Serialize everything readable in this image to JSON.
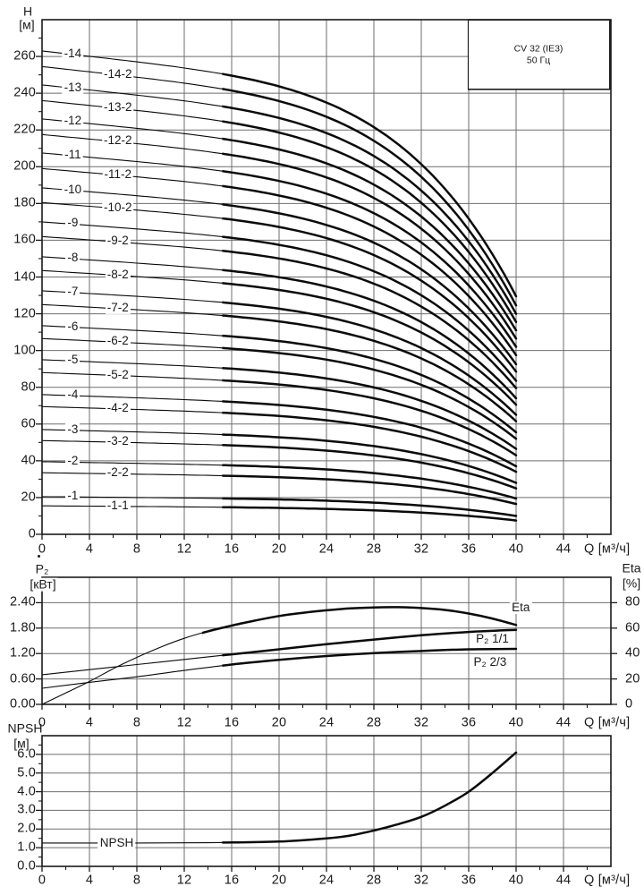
{
  "style": {
    "background": "#ffffff",
    "ink": "#1a1a1a",
    "grid_color": "#6e6e6e",
    "curve_color": "#0a0a0a"
  },
  "chart_data": [
    {
      "type": "line",
      "id": "head-curves",
      "title": "CV 32 (IE3)",
      "subtitle": "50 Гц",
      "xlabel": "Q [м³/ч]",
      "ylabel": "H [м]",
      "ylabel_title": "H",
      "ylabel_unit": "[м]",
      "xlim": [
        0,
        48
      ],
      "ylim": [
        0,
        280
      ],
      "x_ticks": [
        0,
        4,
        8,
        12,
        16,
        20,
        24,
        28,
        32,
        36,
        40,
        44
      ],
      "x_minor": [
        2,
        6,
        10,
        14,
        18,
        22,
        26,
        30,
        34,
        38,
        42,
        46
      ],
      "y_ticks": [
        0,
        20,
        40,
        60,
        80,
        100,
        120,
        140,
        160,
        180,
        200,
        220,
        240,
        260
      ],
      "y_minor": [
        10,
        30,
        50,
        70,
        90,
        110,
        130,
        150,
        170,
        190,
        210,
        230,
        250,
        270
      ],
      "grid": "on",
      "q_end": 40,
      "duty_from": 15.2,
      "curve_model": "H(q) = H0 - (H0-Hend)*(0.22*t + 0.78*t^4.5), t=q/40",
      "series": [
        {
          "label": "-14",
          "H0": 263,
          "Hend": 129.5,
          "label_q": 2.6
        },
        {
          "label": "-14-2",
          "H0": 254.5,
          "Hend": 124.5,
          "label_q": 6.4
        },
        {
          "label": "-13",
          "H0": 244.5,
          "Hend": 120,
          "label_q": 2.6
        },
        {
          "label": "-13-2",
          "H0": 236,
          "Hend": 115.5,
          "label_q": 6.4
        },
        {
          "label": "-12",
          "H0": 226,
          "Hend": 111,
          "label_q": 2.6
        },
        {
          "label": "-12-2",
          "H0": 217.5,
          "Hend": 106.5,
          "label_q": 6.4
        },
        {
          "label": "-11",
          "H0": 207.5,
          "Hend": 102,
          "label_q": 2.6
        },
        {
          "label": "-11-2",
          "H0": 199,
          "Hend": 97.5,
          "label_q": 6.4
        },
        {
          "label": "-10",
          "H0": 188.5,
          "Hend": 92.5,
          "label_q": 2.6
        },
        {
          "label": "-10-2",
          "H0": 180.5,
          "Hend": 88.5,
          "label_q": 6.4
        },
        {
          "label": "-9",
          "H0": 170,
          "Hend": 83.5,
          "label_q": 2.6
        },
        {
          "label": "-9-2",
          "H0": 162,
          "Hend": 79.5,
          "label_q": 6.4
        },
        {
          "label": "-8",
          "H0": 151,
          "Hend": 74,
          "label_q": 2.6
        },
        {
          "label": "-8-2",
          "H0": 143.5,
          "Hend": 70.5,
          "label_q": 6.4
        },
        {
          "label": "-7",
          "H0": 132.5,
          "Hend": 65,
          "label_q": 2.6
        },
        {
          "label": "-7-2",
          "H0": 125,
          "Hend": 61.5,
          "label_q": 6.4
        },
        {
          "label": "-6",
          "H0": 113.5,
          "Hend": 55.5,
          "label_q": 2.6
        },
        {
          "label": "-6-2",
          "H0": 106.5,
          "Hend": 52,
          "label_q": 6.4
        },
        {
          "label": "-5",
          "H0": 95,
          "Hend": 46.5,
          "label_q": 2.6
        },
        {
          "label": "-5-2",
          "H0": 88,
          "Hend": 43,
          "label_q": 6.4
        },
        {
          "label": "-4",
          "H0": 76,
          "Hend": 37,
          "label_q": 2.6
        },
        {
          "label": "-4-2",
          "H0": 69.5,
          "Hend": 34,
          "label_q": 6.4
        },
        {
          "label": "-3",
          "H0": 57,
          "Hend": 28,
          "label_q": 2.6
        },
        {
          "label": "-3-2",
          "H0": 51,
          "Hend": 25,
          "label_q": 6.4
        },
        {
          "label": "-2",
          "H0": 39.5,
          "Hend": 19.5,
          "label_q": 2.6
        },
        {
          "label": "-2-2",
          "H0": 33.5,
          "Hend": 16.5,
          "label_q": 6.4
        },
        {
          "label": "-1",
          "H0": 20.5,
          "Hend": 10,
          "label_q": 2.6
        },
        {
          "label": "-1-1",
          "H0": 15.5,
          "Hend": 7.5,
          "label_q": 6.4
        }
      ]
    },
    {
      "type": "line",
      "id": "power-eta",
      "xlabel": "Q [м³/ч]",
      "xlim": [
        0,
        48
      ],
      "x_ticks": [
        0,
        4,
        8,
        12,
        16,
        20,
        24,
        28,
        32,
        36,
        40,
        44
      ],
      "x_minor": [
        2,
        6,
        10,
        14,
        18,
        22,
        26,
        30,
        34,
        38,
        42,
        46
      ],
      "left_axis": {
        "title": "P₂",
        "unit": "[кВт]",
        "max": 3.0,
        "tick_values": [
          0,
          0.6,
          1.2,
          1.8,
          2.4
        ],
        "tick_labels": [
          "0.00",
          "0.60",
          "1.20",
          "1.80",
          "2.40"
        ]
      },
      "right_axis": {
        "title": "Eta",
        "unit": "[%]",
        "max": 100,
        "tick_values": [
          0,
          20,
          40,
          60,
          80
        ],
        "tick_labels": [
          "0",
          "20",
          "40",
          "60",
          "80"
        ]
      },
      "grid": "on",
      "series": [
        {
          "label": "Eta",
          "axis": "right",
          "duty_from": 13.5,
          "label_at": {
            "q": 40.4,
            "v": 76
          },
          "points": [
            [
              0,
              0
            ],
            [
              2,
              9
            ],
            [
              4,
              18
            ],
            [
              6,
              28
            ],
            [
              8,
              37
            ],
            [
              10,
              45
            ],
            [
              12,
              52
            ],
            [
              14,
              57.5
            ],
            [
              16,
              62
            ],
            [
              18,
              66
            ],
            [
              20,
              69.5
            ],
            [
              22,
              72
            ],
            [
              24,
              74
            ],
            [
              26,
              75.5
            ],
            [
              28,
              76.3
            ],
            [
              30,
              76.5
            ],
            [
              32,
              75.8
            ],
            [
              34,
              74.3
            ],
            [
              36,
              71.5
            ],
            [
              38,
              67.5
            ],
            [
              40,
              62.5
            ]
          ]
        },
        {
          "label": "P₂ 1/1",
          "axis": "left",
          "duty_from": 15.2,
          "label_at": {
            "q": 38,
            "v": 1.54
          },
          "points": [
            [
              0,
              0.7
            ],
            [
              4,
              0.82
            ],
            [
              8,
              0.94
            ],
            [
              12,
              1.06
            ],
            [
              16,
              1.18
            ],
            [
              20,
              1.3
            ],
            [
              24,
              1.42
            ],
            [
              28,
              1.53
            ],
            [
              32,
              1.63
            ],
            [
              36,
              1.71
            ],
            [
              40,
              1.76
            ]
          ]
        },
        {
          "label": "P₂ 2/3",
          "axis": "left",
          "duty_from": 15.2,
          "label_at": {
            "q": 37.8,
            "v": 0.99
          },
          "points": [
            [
              0,
              0.38
            ],
            [
              4,
              0.52
            ],
            [
              8,
              0.65
            ],
            [
              12,
              0.8
            ],
            [
              16,
              0.94
            ],
            [
              20,
              1.05
            ],
            [
              24,
              1.14
            ],
            [
              28,
              1.21
            ],
            [
              32,
              1.26
            ],
            [
              36,
              1.3
            ],
            [
              40,
              1.31
            ]
          ]
        }
      ]
    },
    {
      "type": "line",
      "id": "npsh",
      "xlabel": "Q [м³/ч]",
      "xlim": [
        0,
        48
      ],
      "x_ticks": [
        0,
        4,
        8,
        12,
        16,
        20,
        24,
        28,
        32,
        36,
        40,
        44
      ],
      "x_minor": [
        2,
        6,
        10,
        14,
        18,
        22,
        26,
        30,
        34,
        38,
        42,
        46
      ],
      "left_axis": {
        "title": "NPSH",
        "unit": "[м]",
        "max": 7.0,
        "tick_values": [
          0,
          1,
          2,
          3,
          4,
          5,
          6
        ],
        "tick_labels": [
          "0.0",
          "1.0",
          "2.0",
          "3.0",
          "4.0",
          "5.0",
          "6.0"
        ]
      },
      "y_minor": [
        0.5,
        1.5,
        2.5,
        3.5,
        4.5,
        5.5,
        6.5
      ],
      "grid": "on",
      "series": [
        {
          "label": "NPSH",
          "axis": "left",
          "duty_from": 15.2,
          "label_at": {
            "q": 6.3,
            "v": 1.25
          },
          "points": [
            [
              0,
              1.25
            ],
            [
              4,
              1.25
            ],
            [
              8,
              1.25
            ],
            [
              12,
              1.26
            ],
            [
              16,
              1.28
            ],
            [
              20,
              1.33
            ],
            [
              24,
              1.5
            ],
            [
              26,
              1.65
            ],
            [
              28,
              1.92
            ],
            [
              30,
              2.25
            ],
            [
              32,
              2.65
            ],
            [
              34,
              3.25
            ],
            [
              36,
              4.0
            ],
            [
              38,
              5.0
            ],
            [
              40,
              6.1
            ]
          ]
        }
      ]
    }
  ]
}
